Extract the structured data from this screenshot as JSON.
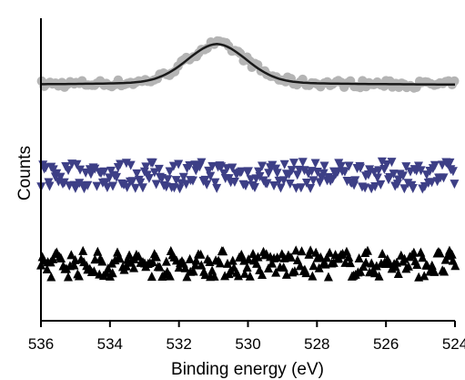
{
  "chart_data": {
    "type": "scatter",
    "title": "",
    "xlabel": "Binding energy (eV)",
    "ylabel": "Counts",
    "xlim": [
      536,
      524
    ],
    "x_reversed": true,
    "x_ticks": [
      "536",
      "534",
      "532",
      "530",
      "528",
      "526",
      "524"
    ],
    "y_ticks_shown": false,
    "grid": false,
    "legend": "none",
    "series": [
      {
        "marker": "circle",
        "color": "#b4b4b4",
        "baseline": 0.78,
        "peak": {
          "center": 530.9,
          "height": 0.12,
          "sigma": 0.85
        },
        "fit_line": {
          "color": "#1a1a1a"
        }
      },
      {
        "marker": "triangle-down",
        "color": "#3d3f86",
        "baseline": 0.48
      },
      {
        "marker": "triangle-up",
        "color": "#000000",
        "baseline": 0.19
      }
    ]
  }
}
